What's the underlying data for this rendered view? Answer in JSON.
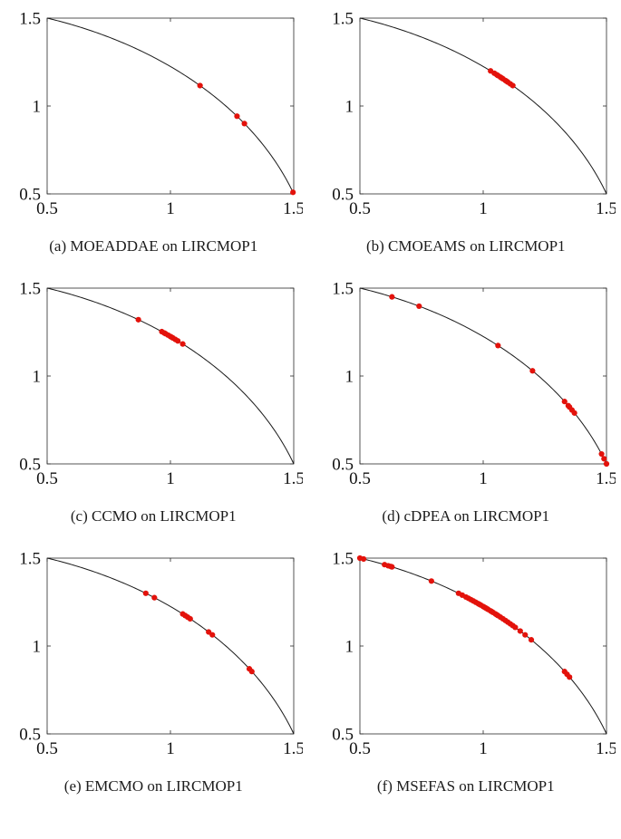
{
  "page": {
    "background": "#ffffff",
    "description_problem": "LIRCMOP1"
  },
  "plot_style": {
    "axis_color": "#2a2a2a",
    "text_color": "#111111",
    "curve_color": "#1a1a1a",
    "curve_width": 1,
    "point_color": "#e3120b",
    "point_radius": 3.1,
    "tick_font_size": 19
  },
  "chart_data": [
    {
      "type": "scatter",
      "caption": "(a) MOEADDAE on LIRCMOP1",
      "xlim": [
        0.5,
        1.5
      ],
      "ylim": [
        0.5,
        1.5
      ],
      "xticks": [
        0.5,
        1,
        1.5
      ],
      "xtick_labels": [
        "0.5",
        "1",
        "1.5"
      ],
      "yticks": [
        0.5,
        1,
        1.5
      ],
      "ytick_labels": [
        "0.5",
        "1",
        "1.5"
      ],
      "curve": {
        "type": "circle_arc",
        "r2": 2.5,
        "x_range": [
          0.5,
          1.5
        ]
      },
      "points": [
        [
          1.12,
          1.1161
        ],
        [
          1.27,
          0.9419
        ],
        [
          1.3,
          0.9
        ],
        [
          1.497,
          0.5089
        ]
      ]
    },
    {
      "type": "scatter",
      "caption": "(b) CMOEAMS on LIRCMOP1",
      "xlim": [
        0.5,
        1.5
      ],
      "ylim": [
        0.5,
        1.5
      ],
      "xticks": [
        0.5,
        1,
        1.5
      ],
      "xtick_labels": [
        "0.5",
        "1",
        "1.5"
      ],
      "yticks": [
        0.5,
        1,
        1.5
      ],
      "ytick_labels": [
        "0.5",
        "1",
        "1.5"
      ],
      "curve": {
        "type": "circle_arc",
        "r2": 2.5,
        "x_range": [
          0.5,
          1.5
        ]
      },
      "points": [
        [
          1.03,
          1.1996
        ],
        [
          1.045,
          1.1866
        ],
        [
          1.055,
          1.1777
        ],
        [
          1.06,
          1.1732
        ],
        [
          1.07,
          1.1641
        ],
        [
          1.075,
          1.1595
        ],
        [
          1.08,
          1.1548
        ],
        [
          1.09,
          1.1454
        ],
        [
          1.095,
          1.1406
        ],
        [
          1.1,
          1.1358
        ],
        [
          1.11,
          1.126
        ],
        [
          1.12,
          1.1161
        ]
      ]
    },
    {
      "type": "scatter",
      "caption": "(c) CCMO on LIRCMOP1",
      "xlim": [
        0.5,
        1.5
      ],
      "ylim": [
        0.5,
        1.5
      ],
      "xticks": [
        0.5,
        1,
        1.5
      ],
      "xtick_labels": [
        "0.5",
        "1",
        "1.5"
      ],
      "yticks": [
        0.5,
        1,
        1.5
      ],
      "ytick_labels": [
        "0.5",
        "1",
        "1.5"
      ],
      "curve": {
        "type": "circle_arc",
        "r2": 2.5,
        "x_range": [
          0.5,
          1.5
        ]
      },
      "points": [
        [
          0.87,
          1.3203
        ],
        [
          0.965,
          1.2525
        ],
        [
          0.975,
          1.2447
        ],
        [
          0.98,
          1.2408
        ],
        [
          0.99,
          1.2329
        ],
        [
          1.0,
          1.2247
        ],
        [
          1.005,
          1.2206
        ],
        [
          1.01,
          1.2165
        ],
        [
          1.02,
          1.2081
        ],
        [
          1.03,
          1.1996
        ],
        [
          1.05,
          1.1822
        ]
      ]
    },
    {
      "type": "scatter",
      "caption": "(d) cDPEA on LIRCMOP1",
      "xlim": [
        0.5,
        1.5
      ],
      "ylim": [
        0.5,
        1.5
      ],
      "xticks": [
        0.5,
        1,
        1.5
      ],
      "xtick_labels": [
        "0.5",
        "1",
        "1.5"
      ],
      "yticks": [
        0.5,
        1,
        1.5
      ],
      "ytick_labels": [
        "0.5",
        "1",
        "1.5"
      ],
      "curve": {
        "type": "circle_arc",
        "r2": 2.5,
        "x_range": [
          0.5,
          1.5
        ]
      },
      "points": [
        [
          0.63,
          1.4502
        ],
        [
          0.74,
          1.3973
        ],
        [
          1.06,
          1.1732
        ],
        [
          1.2,
          1.0296
        ],
        [
          1.33,
          0.855
        ],
        [
          1.345,
          0.8313
        ],
        [
          1.35,
          0.8231
        ],
        [
          1.36,
          0.8065
        ],
        [
          1.37,
          0.7894
        ],
        [
          1.48,
          0.5564
        ],
        [
          1.49,
          0.5291
        ],
        [
          1.5,
          0.5
        ]
      ]
    },
    {
      "type": "scatter",
      "caption": "(e) EMCMO on LIRCMOP1",
      "xlim": [
        0.5,
        1.5
      ],
      "ylim": [
        0.5,
        1.5
      ],
      "xticks": [
        0.5,
        1,
        1.5
      ],
      "xtick_labels": [
        "0.5",
        "1",
        "1.5"
      ],
      "yticks": [
        0.5,
        1,
        1.5
      ],
      "ytick_labels": [
        "0.5",
        "1",
        "1.5"
      ],
      "curve": {
        "type": "circle_arc",
        "r2": 2.5,
        "x_range": [
          0.5,
          1.5
        ]
      },
      "points": [
        [
          0.9,
          1.3
        ],
        [
          0.935,
          1.2751
        ],
        [
          1.05,
          1.1822
        ],
        [
          1.06,
          1.1732
        ],
        [
          1.07,
          1.1641
        ],
        [
          1.08,
          1.1548
        ],
        [
          1.155,
          1.0798
        ],
        [
          1.17,
          1.0635
        ],
        [
          1.32,
          0.8704
        ],
        [
          1.33,
          0.855
        ]
      ]
    },
    {
      "type": "scatter",
      "caption": "(f) MSEFAS on LIRCMOP1",
      "xlim": [
        0.5,
        1.5
      ],
      "ylim": [
        0.5,
        1.5
      ],
      "xticks": [
        0.5,
        1,
        1.5
      ],
      "xtick_labels": [
        "0.5",
        "1",
        "1.5"
      ],
      "yticks": [
        0.5,
        1,
        1.5
      ],
      "ytick_labels": [
        "0.5",
        "1",
        "1.5"
      ],
      "curve": {
        "type": "circle_arc",
        "r2": 2.5,
        "x_range": [
          0.5,
          1.5
        ]
      },
      "points": [
        [
          0.5,
          1.5
        ],
        [
          0.515,
          1.4949
        ],
        [
          0.6,
          1.4629
        ],
        [
          0.615,
          1.4566
        ],
        [
          0.625,
          1.4524
        ],
        [
          0.63,
          1.4502
        ],
        [
          0.79,
          1.3696
        ],
        [
          0.9,
          1.3
        ],
        [
          0.915,
          1.2895
        ],
        [
          0.93,
          1.2787
        ],
        [
          0.94,
          1.2714
        ],
        [
          0.95,
          1.2639
        ],
        [
          0.96,
          1.2563
        ],
        [
          0.97,
          1.2486
        ],
        [
          0.98,
          1.2408
        ],
        [
          0.985,
          1.2369
        ],
        [
          0.99,
          1.2329
        ],
        [
          1.0,
          1.2247
        ],
        [
          1.005,
          1.2206
        ],
        [
          1.01,
          1.2165
        ],
        [
          1.015,
          1.2123
        ],
        [
          1.02,
          1.2081
        ],
        [
          1.03,
          1.1996
        ],
        [
          1.035,
          1.1953
        ],
        [
          1.04,
          1.191
        ],
        [
          1.05,
          1.1822
        ],
        [
          1.055,
          1.1777
        ],
        [
          1.06,
          1.1732
        ],
        [
          1.07,
          1.1641
        ],
        [
          1.08,
          1.1548
        ],
        [
          1.09,
          1.1454
        ],
        [
          1.1,
          1.1358
        ],
        [
          1.11,
          1.126
        ],
        [
          1.12,
          1.1161
        ],
        [
          1.13,
          1.1059
        ],
        [
          1.15,
          1.0851
        ],
        [
          1.17,
          1.0635
        ],
        [
          1.195,
          1.0354
        ],
        [
          1.33,
          0.855
        ],
        [
          1.34,
          0.8393
        ],
        [
          1.35,
          0.8231
        ]
      ]
    }
  ]
}
